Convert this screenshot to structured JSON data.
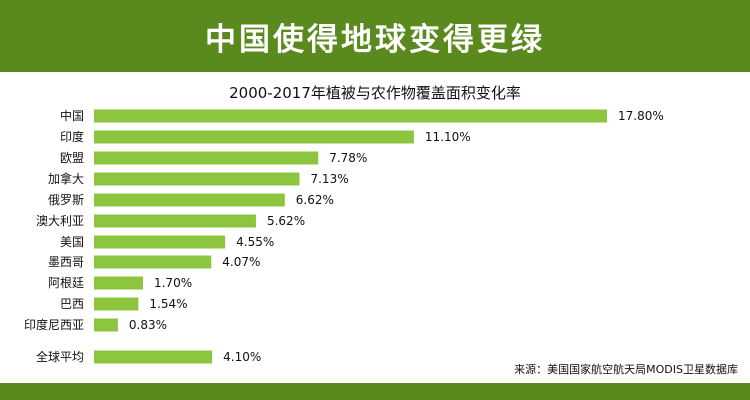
{
  "header": {
    "title": "中国使得地球变得更绿"
  },
  "source": "来源：美国国家航空航天局MODIS卫星数据库",
  "colors": {
    "header_bg": "#5a8a1e",
    "bar": "#8cc63f"
  },
  "chart_data": {
    "type": "bar",
    "orientation": "horizontal",
    "title": "2000-2017年植被与农作物覆盖面积变化率",
    "categories": [
      "中国",
      "印度",
      "欧盟",
      "加拿大",
      "俄罗斯",
      "澳大利亚",
      "美国",
      "墨西哥",
      "阿根廷",
      "巴西",
      "印度尼西亚",
      "全球平均"
    ],
    "values": [
      17.8,
      11.1,
      7.78,
      7.13,
      6.62,
      5.62,
      4.55,
      4.07,
      1.7,
      1.54,
      0.83,
      4.1
    ],
    "value_labels": [
      "17.80%",
      "11.10%",
      "7.78%",
      "7.13%",
      "6.62%",
      "5.62%",
      "4.55%",
      "4.07%",
      "1.70%",
      "1.54%",
      "0.83%",
      "4.10%"
    ],
    "xlim": [
      0,
      17.8
    ],
    "grid": false,
    "legend": "none"
  }
}
